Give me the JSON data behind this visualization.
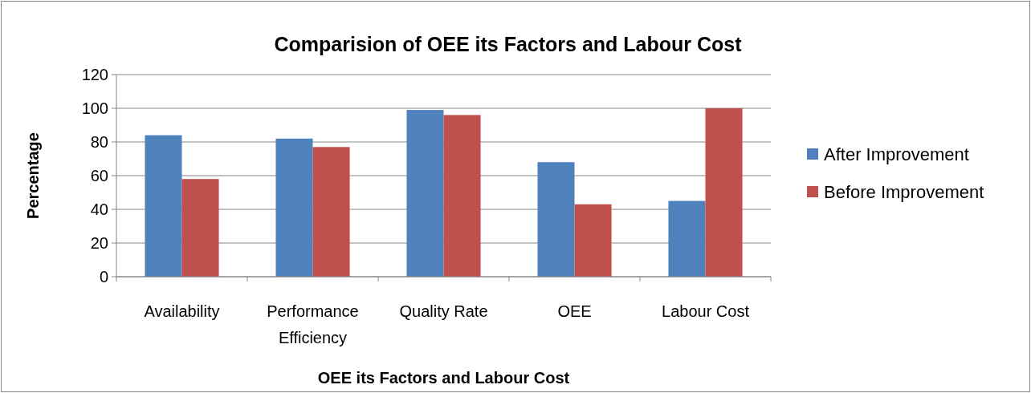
{
  "chart_data": {
    "type": "bar",
    "title": "Comparision of OEE its Factors and Labour Cost",
    "xlabel": "OEE its Factors and Labour Cost",
    "ylabel": "Percentage",
    "categories": [
      "Availability",
      "Performance Efficiency",
      "Quality Rate",
      "OEE",
      "Labour Cost"
    ],
    "series": [
      {
        "name": "After Improvement",
        "color": "#4f81bd",
        "values": [
          84,
          82,
          99,
          68,
          45
        ]
      },
      {
        "name": "Before Improvement",
        "color": "#c0504d",
        "values": [
          58,
          77,
          96,
          43,
          100
        ]
      }
    ],
    "ylim": [
      0,
      120
    ],
    "yticks": [
      0,
      20,
      40,
      60,
      80,
      100,
      120
    ],
    "grid": "y",
    "legend": "right"
  }
}
